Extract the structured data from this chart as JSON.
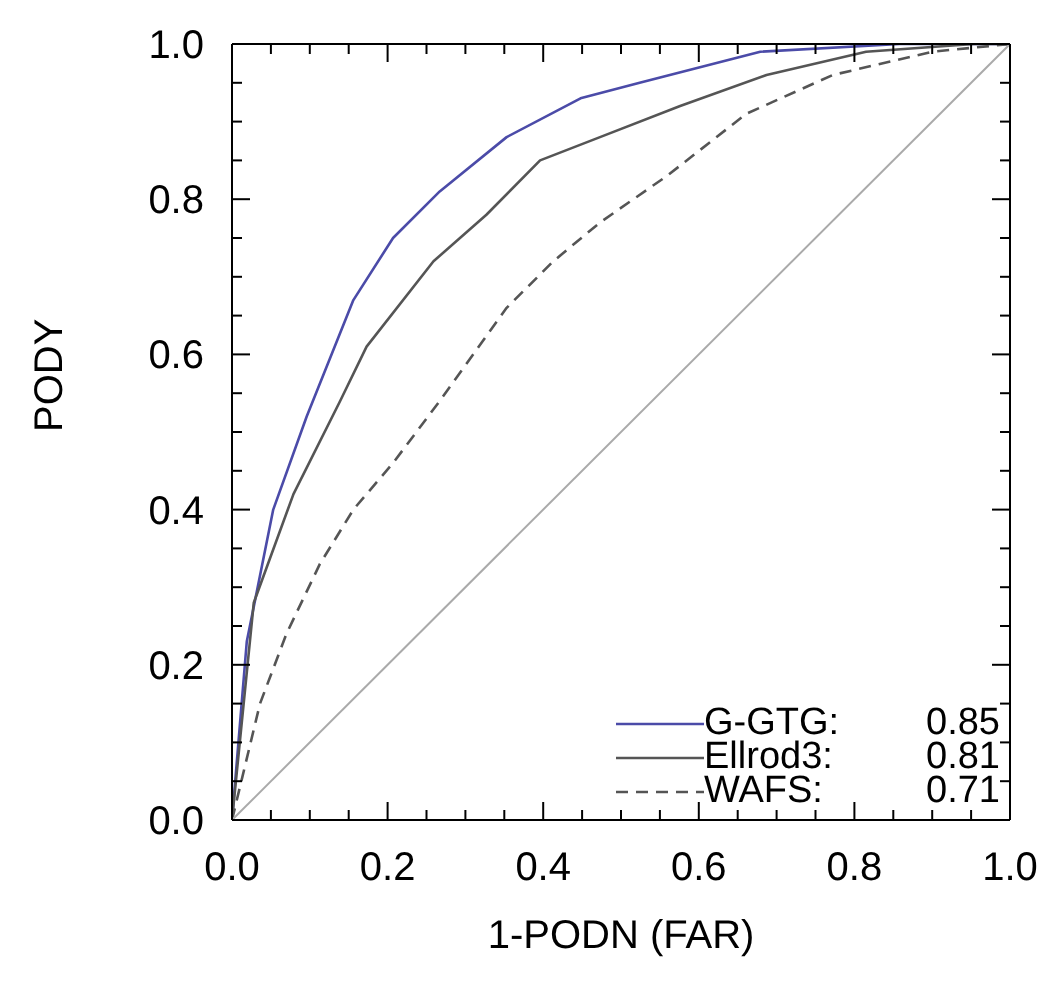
{
  "chart_data": {
    "type": "line",
    "xlabel": "1-PODN (FAR)",
    "ylabel": "PODY",
    "xlim": [
      0,
      1
    ],
    "ylim": [
      0,
      1
    ],
    "xticks": [
      {
        "value": 0,
        "label": "0.0"
      },
      {
        "value": 0.05,
        "label": null
      },
      {
        "value": 0.1,
        "label": null
      },
      {
        "value": 0.15,
        "label": null
      },
      {
        "value": 0.2,
        "label": "0.2"
      },
      {
        "value": 0.25,
        "label": null
      },
      {
        "value": 0.3,
        "label": null
      },
      {
        "value": 0.35,
        "label": null
      },
      {
        "value": 0.4,
        "label": "0.4"
      },
      {
        "value": 0.45,
        "label": null
      },
      {
        "value": 0.5,
        "label": null
      },
      {
        "value": 0.55,
        "label": null
      },
      {
        "value": 0.6,
        "label": "0.6"
      },
      {
        "value": 0.65,
        "label": null
      },
      {
        "value": 0.7,
        "label": null
      },
      {
        "value": 0.75,
        "label": null
      },
      {
        "value": 0.8,
        "label": "0.8"
      },
      {
        "value": 0.85,
        "label": null
      },
      {
        "value": 0.9,
        "label": null
      },
      {
        "value": 0.95,
        "label": null
      },
      {
        "value": 1,
        "label": "1.0"
      }
    ],
    "yticks": [
      {
        "value": 0,
        "label": "0.0"
      },
      {
        "value": 0.05,
        "label": null
      },
      {
        "value": 0.1,
        "label": null
      },
      {
        "value": 0.15,
        "label": null
      },
      {
        "value": 0.2,
        "label": "0.2"
      },
      {
        "value": 0.25,
        "label": null
      },
      {
        "value": 0.3,
        "label": null
      },
      {
        "value": 0.35,
        "label": null
      },
      {
        "value": 0.4,
        "label": "0.4"
      },
      {
        "value": 0.45,
        "label": null
      },
      {
        "value": 0.5,
        "label": null
      },
      {
        "value": 0.55,
        "label": null
      },
      {
        "value": 0.6,
        "label": "0.6"
      },
      {
        "value": 0.65,
        "label": null
      },
      {
        "value": 0.7,
        "label": null
      },
      {
        "value": 0.75,
        "label": null
      },
      {
        "value": 0.8,
        "label": "0.8"
      },
      {
        "value": 0.85,
        "label": null
      },
      {
        "value": 0.9,
        "label": null
      },
      {
        "value": 0.95,
        "label": null
      },
      {
        "value": 1,
        "label": "1.0"
      }
    ],
    "legend": "bottom right",
    "marker": "none",
    "annotations": [
      "0.85",
      "0.81",
      "0.71"
    ],
    "series": [
      {
        "name": "G-GTG:",
        "color": "#4b4ba8",
        "line_style": "solid",
        "x": [
          0,
          0.019,
          0.053,
          0.096,
          0.156,
          0.207,
          0.267,
          0.353,
          0.448,
          0.524,
          0.679,
          0.858,
          1
        ],
        "values": [
          0,
          0.23,
          0.4,
          0.52,
          0.67,
          0.75,
          0.81,
          0.88,
          0.93,
          0.95,
          0.99,
          1,
          1
        ]
      },
      {
        "name": "Ellrod3:",
        "color": "#555555",
        "line_style": "solid",
        "x": [
          0,
          0.028,
          0.079,
          0.139,
          0.173,
          0.259,
          0.327,
          0.396,
          0.473,
          0.576,
          0.687,
          0.815,
          0.953,
          1
        ],
        "values": [
          0,
          0.28,
          0.42,
          0.54,
          0.61,
          0.72,
          0.78,
          0.85,
          0.88,
          0.92,
          0.96,
          0.99,
          1,
          1
        ]
      },
      {
        "name": "WAFS:",
        "color": "#555555",
        "line_style": "dashed",
        "x": [
          0,
          0.036,
          0.07,
          0.113,
          0.156,
          0.207,
          0.267,
          0.353,
          0.413,
          0.473,
          0.559,
          0.661,
          0.772,
          0.9,
          1
        ],
        "values": [
          0,
          0.15,
          0.24,
          0.33,
          0.4,
          0.46,
          0.54,
          0.66,
          0.72,
          0.77,
          0.83,
          0.91,
          0.96,
          0.99,
          1
        ]
      },
      {
        "color": "#aaaaaa",
        "line_style": "solid",
        "x": [
          0,
          1
        ],
        "values": [
          0,
          1
        ]
      }
    ]
  }
}
